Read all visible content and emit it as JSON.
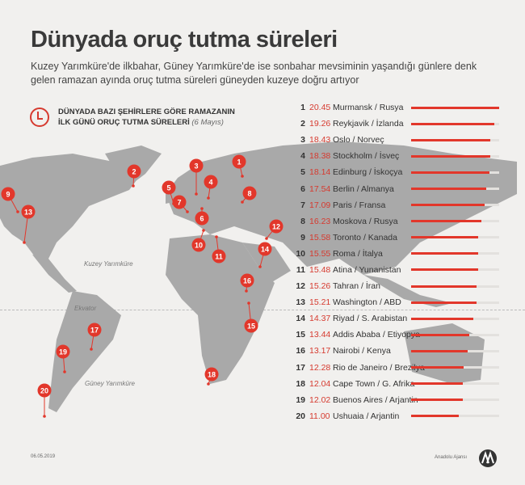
{
  "title": "Dünyada oruç tutma süreleri",
  "subtitle": "Kuzey Yarımküre'de ilkbahar, Güney Yarımküre'de ise sonbahar mevsiminin yaşandığı günlere denk gelen ramazan ayında oruç tutma süreleri güneyden kuzeye doğru artıyor",
  "legend": {
    "line1": "DÜNYADA BAZI ŞEHİRLERE GÖRE RAMAZANIN",
    "line2": "İLK GÜNÜ ORUÇ TUTMA SÜRELERİ",
    "date": "(6 Mayıs)",
    "icon": "clock-icon"
  },
  "map_labels": {
    "north": "Kuzey Yarımküre",
    "equator": "Ekvator",
    "south": "Güney Yarımküre"
  },
  "accent": "#e2372b",
  "max_value": 20.45,
  "cities": [
    {
      "rank": "1",
      "time": "20.45",
      "name": "Murmansk / Rusya",
      "value": 20.45
    },
    {
      "rank": "2",
      "time": "19.26",
      "name": "Reykjavik / İzlanda",
      "value": 19.26
    },
    {
      "rank": "3",
      "time": "18.43",
      "name": "Oslo / Norveç",
      "value": 18.43
    },
    {
      "rank": "4",
      "time": "18.38",
      "name": "Stockholm / İsveç",
      "value": 18.38
    },
    {
      "rank": "5",
      "time": "18.14",
      "name": "Edinburg / İskoçya",
      "value": 18.14
    },
    {
      "rank": "6",
      "time": "17.54",
      "name": "Berlin / Almanya",
      "value": 17.54
    },
    {
      "rank": "7",
      "time": "17.09",
      "name": "Paris / Fransa",
      "value": 17.09
    },
    {
      "rank": "8",
      "time": "16.23",
      "name": "Moskova / Rusya",
      "value": 16.23
    },
    {
      "rank": "9",
      "time": "15.58",
      "name": "Toronto / Kanada",
      "value": 15.58
    },
    {
      "rank": "10",
      "time": "15.55",
      "name": "Roma / İtalya",
      "value": 15.55
    },
    {
      "rank": "11",
      "time": "15.48",
      "name": "Atina / Yunanistan",
      "value": 15.48
    },
    {
      "rank": "12",
      "time": "15.26",
      "name": "Tahran / İran",
      "value": 15.26
    },
    {
      "rank": "13",
      "time": "15.21",
      "name": "Washington / ABD",
      "value": 15.21
    },
    {
      "rank": "14",
      "time": "14.37",
      "name": "Riyad / S. Arabistan",
      "value": 14.37
    },
    {
      "rank": "15",
      "time": "13.44",
      "name": "Addis Ababa / Etiyopya",
      "value": 13.44
    },
    {
      "rank": "16",
      "time": "13.17",
      "name": "Nairobi / Kenya",
      "value": 13.17
    },
    {
      "rank": "17",
      "time": "12.28",
      "name": "Rio de Janeiro / Brezilya",
      "value": 12.28
    },
    {
      "rank": "18",
      "time": "12.04",
      "name": "Cape Town / G. Afrika",
      "value": 12.04
    },
    {
      "rank": "19",
      "time": "12.02",
      "name": "Buenos Aires / Arjantin",
      "value": 12.02
    },
    {
      "rank": "20",
      "time": "11.00",
      "name": "Ushuaia / Arjantin",
      "value": 11.0
    }
  ],
  "footer": {
    "date": "06.05.2019",
    "agency": "Anadolu Ajansı",
    "logo_text": "AA"
  }
}
